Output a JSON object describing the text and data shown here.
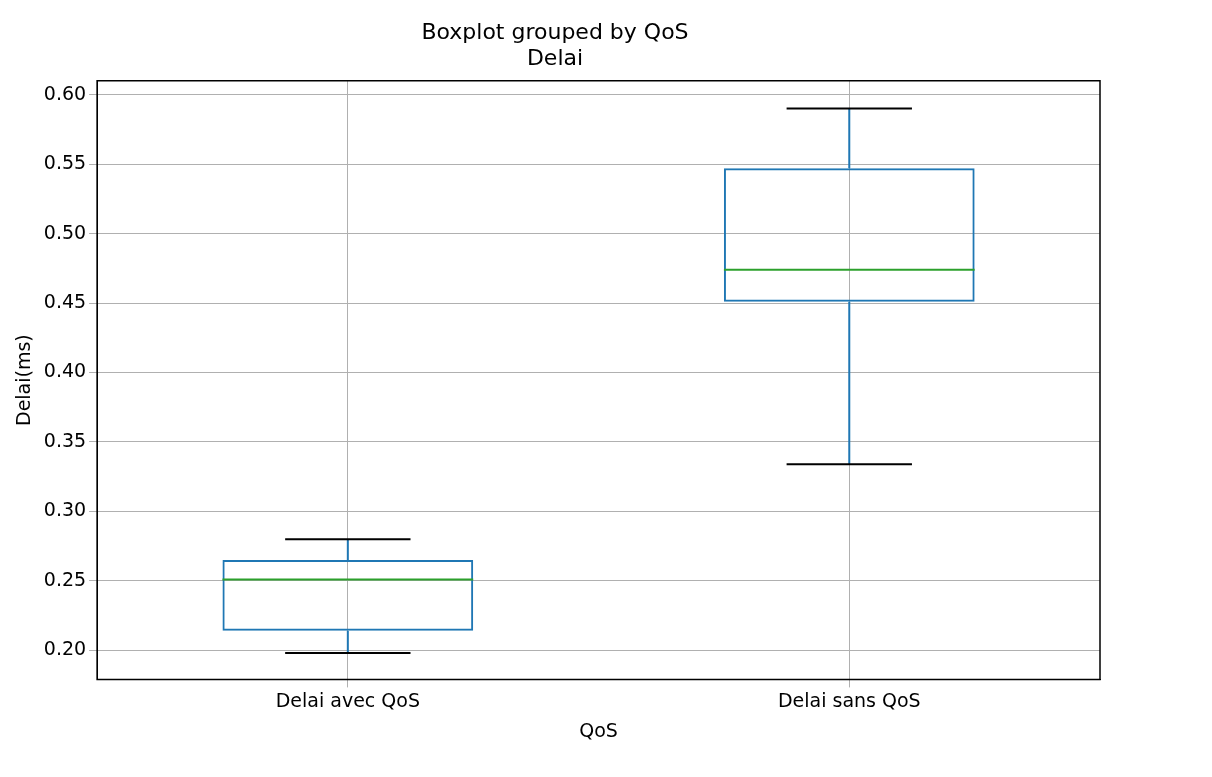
{
  "chart_data": {
    "type": "box",
    "title": "Boxplot grouped by QoS",
    "subtitle": "Delai",
    "xlabel": "QoS",
    "ylabel": "Delai(ms)",
    "categories": [
      "Delai avec QoS",
      "Delai sans QoS"
    ],
    "series": [
      {
        "color": "#1f77b4",
        "boxes": [
          {
            "low": 0.198,
            "q1": 0.214,
            "median": 0.251,
            "q3": 0.265,
            "high": 0.28
          },
          {
            "low": 0.334,
            "q1": 0.451,
            "median": 0.474,
            "q3": 0.547,
            "high": 0.59
          }
        ]
      }
    ],
    "ylim": [
      0.179,
      0.61
    ],
    "yticks": [
      {
        "value": 0.2,
        "label": "0.20"
      },
      0.25,
      {
        "value": 0.3,
        "label": "0.30"
      },
      0.35,
      {
        "value": 0.4,
        "label": "0.40"
      },
      0.45,
      {
        "value": 0.5,
        "label": "0.50"
      },
      0.55,
      {
        "value": 0.6,
        "label": "0.60"
      }
    ],
    "grid": true,
    "legend": false
  }
}
